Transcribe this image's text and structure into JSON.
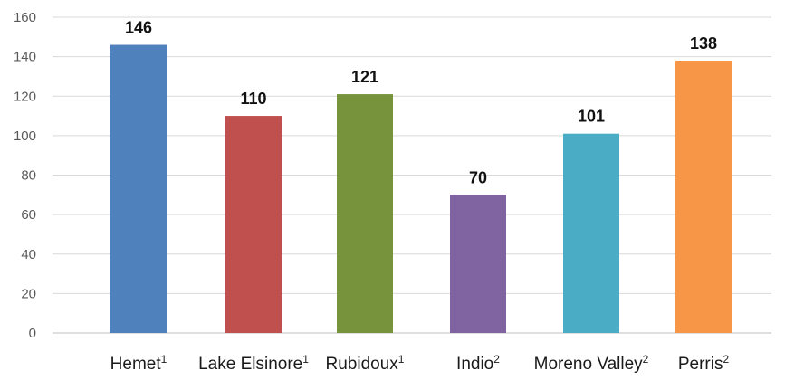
{
  "chart_data": {
    "type": "bar",
    "title": "",
    "xlabel": "",
    "ylabel": "",
    "ylim": [
      0,
      160
    ],
    "yticks": [
      0,
      20,
      40,
      60,
      80,
      100,
      120,
      140,
      160
    ],
    "grid": true,
    "legend": "none",
    "categories": [
      {
        "name": "Hemet",
        "sup": "1"
      },
      {
        "name": "Lake Elsinore",
        "sup": "1"
      },
      {
        "name": "Rubidoux",
        "sup": "1"
      },
      {
        "name": "Indio",
        "sup": "2"
      },
      {
        "name": "Moreno Valley",
        "sup": "2"
      },
      {
        "name": "Perris",
        "sup": "2"
      }
    ],
    "values": [
      146,
      110,
      121,
      70,
      101,
      138
    ],
    "colors": [
      "#4f81bd",
      "#c0504d",
      "#77933c",
      "#8064a2",
      "#4bacc6",
      "#f79646"
    ]
  }
}
